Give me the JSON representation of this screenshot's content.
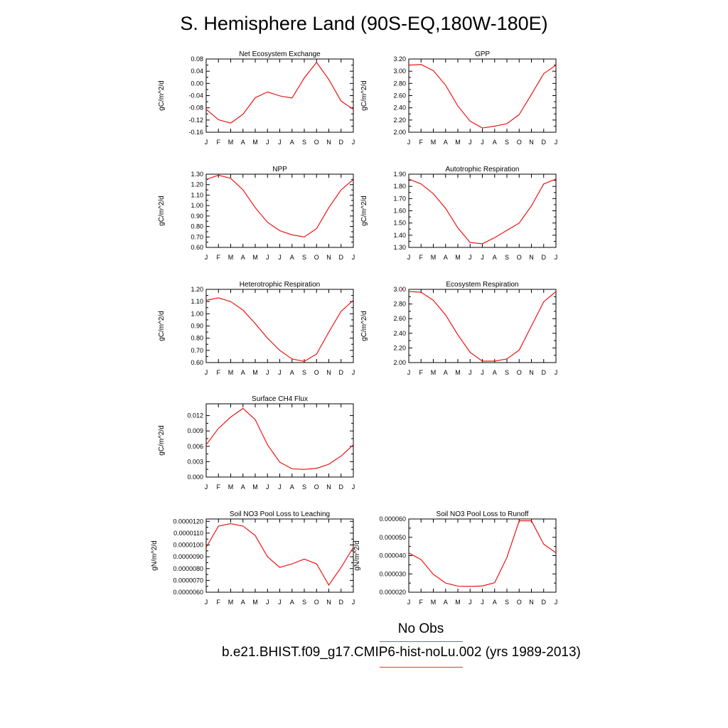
{
  "figure": {
    "title": "S. Hemisphere Land (90S-EQ,180W-180E)",
    "legend": [
      {
        "label": "No Obs",
        "color": "#6666ee"
      },
      {
        "label": "b.e21.BHIST.f09_g17.CMIP6-hist-noLu.002 (yrs 1989-2013)",
        "color": "#ee3333"
      }
    ]
  },
  "chart_data": [
    {
      "type": "line",
      "title": "Net Ecosystem Exchange",
      "ylabel": "gC/m^2/d",
      "categories": [
        "J",
        "F",
        "M",
        "A",
        "M",
        "J",
        "J",
        "A",
        "S",
        "O",
        "N",
        "D",
        "J"
      ],
      "yticks": [
        "0.08",
        "0.04",
        "0.00",
        "-0.04",
        "-0.08",
        "-0.12",
        "-0.16"
      ],
      "ylim": [
        -0.16,
        0.08
      ],
      "series": [
        {
          "color": "#ee0000",
          "values": [
            -0.085,
            -0.119,
            -0.13,
            -0.101,
            -0.047,
            -0.028,
            -0.041,
            -0.048,
            0.018,
            0.069,
            0.013,
            -0.058,
            -0.085
          ]
        }
      ]
    },
    {
      "type": "line",
      "title": "GPP",
      "ylabel": "gC/m^2/d",
      "categories": [
        "J",
        "F",
        "M",
        "A",
        "M",
        "J",
        "J",
        "A",
        "S",
        "O",
        "N",
        "D",
        "J"
      ],
      "yticks": [
        "3.20",
        "3.00",
        "2.80",
        "2.60",
        "2.40",
        "2.20",
        "2.00"
      ],
      "ylim": [
        2.0,
        3.2
      ],
      "series": [
        {
          "color": "#ee0000",
          "values": [
            3.1,
            3.11,
            3.01,
            2.77,
            2.43,
            2.18,
            2.07,
            2.1,
            2.14,
            2.29,
            2.62,
            2.96,
            3.1
          ]
        }
      ]
    },
    {
      "type": "line",
      "title": "NPP",
      "ylabel": "gC/m^2/d",
      "categories": [
        "J",
        "F",
        "M",
        "A",
        "M",
        "J",
        "J",
        "A",
        "S",
        "O",
        "N",
        "D",
        "J"
      ],
      "yticks": [
        "1.30",
        "1.20",
        "1.10",
        "1.00",
        "0.90",
        "0.80",
        "0.70",
        "0.60"
      ],
      "ylim": [
        0.6,
        1.3
      ],
      "series": [
        {
          "color": "#ee0000",
          "values": [
            1.25,
            1.29,
            1.26,
            1.15,
            0.98,
            0.84,
            0.76,
            0.72,
            0.7,
            0.78,
            0.98,
            1.15,
            1.25
          ]
        }
      ]
    },
    {
      "type": "line",
      "title": "Autotrophic Respiration",
      "ylabel": "gC/m^2/d",
      "categories": [
        "J",
        "F",
        "M",
        "A",
        "M",
        "J",
        "J",
        "A",
        "S",
        "O",
        "N",
        "D",
        "J"
      ],
      "yticks": [
        "1.90",
        "1.80",
        "1.70",
        "1.60",
        "1.50",
        "1.40",
        "1.30"
      ],
      "ylim": [
        1.3,
        1.9
      ],
      "series": [
        {
          "color": "#ee0000",
          "values": [
            1.86,
            1.82,
            1.74,
            1.62,
            1.46,
            1.34,
            1.33,
            1.38,
            1.44,
            1.5,
            1.64,
            1.82,
            1.86
          ]
        }
      ]
    },
    {
      "type": "line",
      "title": "Heterotrophic Respiration",
      "ylabel": "gC/m^2/d",
      "categories": [
        "J",
        "F",
        "M",
        "A",
        "M",
        "J",
        "J",
        "A",
        "S",
        "O",
        "N",
        "D",
        "J"
      ],
      "yticks": [
        "1.20",
        "1.10",
        "1.00",
        "0.90",
        "0.80",
        "0.70",
        "0.60"
      ],
      "ylim": [
        0.6,
        1.2
      ],
      "series": [
        {
          "color": "#ee0000",
          "values": [
            1.11,
            1.13,
            1.1,
            1.03,
            0.92,
            0.8,
            0.7,
            0.63,
            0.61,
            0.67,
            0.85,
            1.02,
            1.11
          ]
        }
      ]
    },
    {
      "type": "line",
      "title": "Ecosystem Respiration",
      "ylabel": "gC/m^2/d",
      "categories": [
        "J",
        "F",
        "M",
        "A",
        "M",
        "J",
        "J",
        "A",
        "S",
        "O",
        "N",
        "D",
        "J"
      ],
      "yticks": [
        "3.00",
        "2.80",
        "2.60",
        "2.40",
        "2.20",
        "2.00"
      ],
      "ylim": [
        2.0,
        3.0
      ],
      "series": [
        {
          "color": "#ee0000",
          "values": [
            2.97,
            2.96,
            2.85,
            2.65,
            2.38,
            2.14,
            2.02,
            2.02,
            2.05,
            2.17,
            2.5,
            2.83,
            2.97
          ]
        }
      ]
    },
    {
      "type": "line",
      "title": "Surface CH4 Flux",
      "ylabel": "gC/m^2/d",
      "categories": [
        "J",
        "F",
        "M",
        "A",
        "M",
        "J",
        "J",
        "A",
        "S",
        "O",
        "N",
        "D",
        "J"
      ],
      "yticks": [
        "0.012",
        "0.009",
        "0.006",
        "0.003",
        "0.000"
      ],
      "ylim": [
        0.0,
        0.0143
      ],
      "series": [
        {
          "color": "#ee0000",
          "values": [
            0.0063,
            0.0095,
            0.0117,
            0.0134,
            0.0112,
            0.0063,
            0.0029,
            0.0016,
            0.0015,
            0.0017,
            0.0025,
            0.0041,
            0.0063
          ]
        }
      ]
    },
    {
      "type": "line",
      "title": "Soil NO3 Pool Loss to Leaching",
      "ylabel": "gN/m^2/d",
      "categories": [
        "J",
        "F",
        "M",
        "A",
        "M",
        "J",
        "J",
        "A",
        "S",
        "O",
        "N",
        "D",
        "J"
      ],
      "yticks": [
        "0.0000120",
        "0.0000110",
        "0.0000100",
        "0.0000090",
        "0.0000080",
        "0.0000070",
        "0.0000060"
      ],
      "ylim": [
        6e-06,
        1.22e-05
      ],
      "series": [
        {
          "color": "#ee0000",
          "values": [
            9.8e-06,
            1.16e-05,
            1.18e-05,
            1.16e-05,
            1.08e-05,
            9e-06,
            8.1e-06,
            8.4e-06,
            8.8e-06,
            8.4e-06,
            6.6e-06,
            8.1e-06,
            9.8e-06
          ]
        }
      ]
    },
    {
      "type": "line",
      "title": "Soil NO3 Pool Loss to Runoff",
      "ylabel": "gN/m^2/d",
      "categories": [
        "J",
        "F",
        "M",
        "A",
        "M",
        "J",
        "J",
        "A",
        "S",
        "O",
        "N",
        "D",
        "J"
      ],
      "yticks": [
        "0.000060",
        "0.000050",
        "0.000040",
        "0.000030",
        "0.000020"
      ],
      "ylim": [
        2e-05,
        6e-05
      ],
      "series": [
        {
          "color": "#ee0000",
          "values": [
            4.15e-05,
            3.78e-05,
            2.98e-05,
            2.5e-05,
            2.33e-05,
            2.32e-05,
            2.34e-05,
            2.52e-05,
            3.9e-05,
            5.9e-05,
            5.9e-05,
            4.62e-05,
            4.15e-05
          ]
        }
      ]
    }
  ]
}
